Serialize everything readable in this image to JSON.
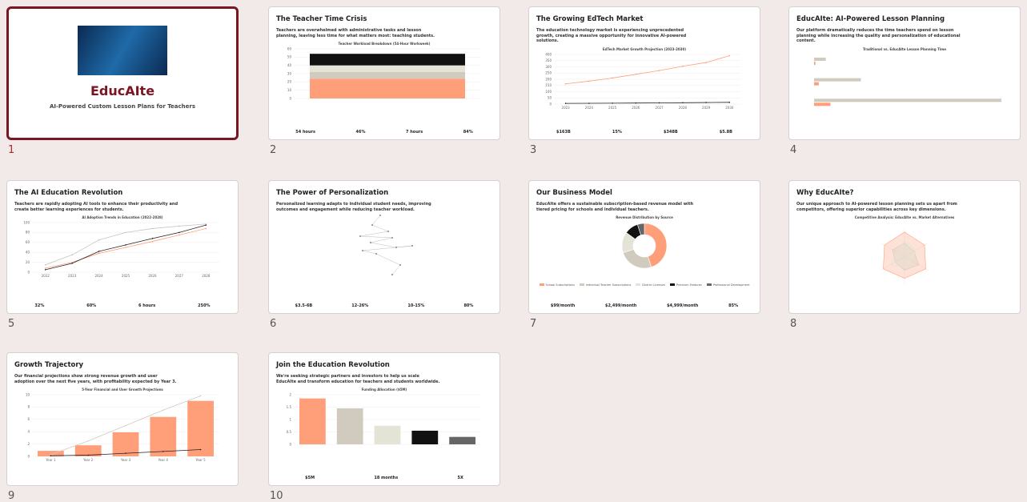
{
  "slides": [
    {
      "number": "1",
      "title": "EducAIte",
      "subtitle": "AI-Powered Custom Lesson Plans for Teachers"
    },
    {
      "number": "2",
      "title": "The Teacher Time Crisis",
      "subtitle": "Teachers are overwhelmed with administrative tasks and lesson planning, leaving less time for what matters most: teaching students.",
      "chart_title": "Teacher Workload Breakdown (54-Hour Workweek)",
      "chart": {
        "type": "stacked",
        "values": [
          24,
          8,
          8,
          14
        ],
        "colors": [
          "#ff9f7a",
          "#d1cabe",
          "#e4e4d6",
          "#111111"
        ],
        "ylim": [
          0,
          60
        ],
        "yticks": [
          0,
          10,
          20,
          30,
          40,
          50,
          60
        ]
      },
      "stats": [
        "54 hours",
        "46%",
        "7 hours",
        "84%"
      ]
    },
    {
      "number": "3",
      "title": "The Growing EdTech Market",
      "subtitle": "The education technology market is experiencing unprecedented growth, creating a massive opportunity for innovative AI-powered solutions.",
      "chart_title": "EdTech Market Growth Projection (2023-2030)",
      "chart": {
        "type": "line",
        "categories": [
          "2023",
          "2024",
          "2025",
          "2026",
          "2027",
          "2028",
          "2029",
          "2030"
        ],
        "ylim": [
          0,
          400
        ],
        "yticks": [
          0,
          50,
          100,
          150,
          200,
          250,
          300,
          350,
          400
        ],
        "series": [
          {
            "color": "#ff9f7a",
            "values": [
              163,
              185,
              210,
              240,
              270,
              305,
              335,
              390
            ]
          },
          {
            "color": "#222222",
            "values": [
              5.8,
              6.5,
              7.5,
              8.6,
              9.8,
              11,
              12.5,
              14
            ]
          }
        ]
      },
      "stats": [
        "$163B",
        "15%",
        "$348B",
        "$5.8B"
      ]
    },
    {
      "number": "4",
      "title": "EducAIte: AI-Powered Lesson Planning",
      "subtitle": "Our platform dramatically reduces the time teachers spend on lesson planning while increasing the quality and personalization of educational content.",
      "chart_title": "Traditional vs. EducAIte Lesson Planning Time",
      "chart": {
        "type": "hbar",
        "ylim": [
          0,
          40
        ],
        "series": [
          {
            "color": "#d1cabe",
            "values": [
              2.5,
              10,
              40
            ]
          },
          {
            "color": "#ff9f7a",
            "values": [
              0.3,
              1,
              3.5
            ]
          }
        ]
      }
    },
    {
      "number": "5",
      "title": "The AI Education Revolution",
      "subtitle": "Teachers are rapidly adopting AI tools to enhance their productivity and create better learning experiences for students.",
      "chart_title": "AI Adoption Trends in Education (2022-2028)",
      "chart": {
        "type": "line",
        "categories": [
          "2022",
          "2023",
          "2024",
          "2025",
          "2026",
          "2027",
          "2028"
        ],
        "ylim": [
          0,
          100
        ],
        "yticks": [
          0,
          20,
          40,
          60,
          80,
          100
        ],
        "series": [
          {
            "color": "#ff9f7a",
            "values": [
              8,
              20,
              38,
              50,
              62,
              75,
              88
            ]
          },
          {
            "color": "#c8c2b8",
            "values": [
              15,
              35,
              65,
              80,
              88,
              93,
              97
            ]
          },
          {
            "color": "#222222",
            "values": [
              5,
              18,
              42,
              55,
              68,
              80,
              95
            ]
          }
        ]
      },
      "stats": [
        "32%",
        "60%",
        "6 hours",
        "250%"
      ]
    },
    {
      "number": "6",
      "title": "The Power of Personalization",
      "subtitle": "Personalized learning adapts to individual student needs, improving outcomes and engagement while reducing teacher workload.",
      "stats": [
        "$3.5-6B",
        "12-26%",
        "10-15%",
        "80%"
      ]
    },
    {
      "number": "7",
      "title": "Our Business Model",
      "subtitle": "EducAIte offers a sustainable subscription-based revenue model with tiered pricing for schools and individual teachers.",
      "chart_title": "Revenue Distribution by Source",
      "chart": {
        "type": "donut",
        "names": [
          "School Subscriptions",
          "Individual Teacher Subscriptions",
          "District Licenses",
          "Premium Features",
          "Professional Development"
        ],
        "values": [
          45,
          25,
          15,
          10,
          5
        ],
        "colors": [
          "#ff9f7a",
          "#d1cabe",
          "#e4e4d6",
          "#111111",
          "#666666"
        ]
      },
      "stats": [
        "$99/month",
        "$2,499/month",
        "$4,999/month",
        "85%"
      ]
    },
    {
      "number": "8",
      "title": "Why EducAIte?",
      "subtitle": "Our unique approach to AI-powered lesson planning sets us apart from competitors, offering superior capabilities across key dimensions.",
      "chart_title": "Competitive Analysis: EducAIte vs. Market Alternatives",
      "chart": {
        "type": "radar",
        "ylim": [
          0,
          10
        ],
        "series": [
          {
            "color": "#ff9f7a",
            "values": [
              9,
              8.5,
              9,
              8,
              9,
              8.5
            ]
          },
          {
            "color": "#d1cabe",
            "values": [
              5,
              4,
              6,
              5,
              4,
              5
            ]
          },
          {
            "color": "#e4e4d6",
            "values": [
              6,
              5,
              3,
              4,
              6,
              3
            ]
          }
        ]
      }
    },
    {
      "number": "9",
      "title": "Growth Trajectory",
      "subtitle": "Our financial projections show strong revenue growth and user adoption over the next five years, with profitability expected by Year 3.",
      "chart_title": "5-Year Financial and User Growth Projections",
      "chart": {
        "type": "bar",
        "categories": [
          "Year 1",
          "Year 2",
          "Year 3",
          "Year 4",
          "Year 5"
        ],
        "ylim": [
          0,
          10
        ],
        "yticks": [
          0,
          2,
          4,
          6,
          8,
          10
        ],
        "values": [
          0.9,
          1.8,
          3.9,
          6.4,
          9
        ],
        "colors": [
          "#ff9f7a"
        ],
        "series": [
          {
            "color": "#d1cabe",
            "values": [
              0.3,
              2.5,
              5,
              7.5,
              9.8
            ]
          },
          {
            "color": "#222222",
            "values": [
              0.1,
              0.2,
              0.5,
              0.8,
              1.1
            ]
          }
        ]
      }
    },
    {
      "number": "10",
      "title": "Join the Education Revolution",
      "subtitle": "We're seeking strategic partners and investors to help us scale EducAIte and transform education for teachers and students worldwide.",
      "chart_title": "Funding Allocation ($5M)",
      "chart": {
        "type": "bar",
        "ylim": [
          0,
          2
        ],
        "yticks": [
          0,
          0.5,
          1,
          1.5,
          2
        ],
        "values": [
          1.85,
          1.45,
          0.75,
          0.55,
          0.3
        ],
        "colors": [
          "#ff9f7a",
          "#d1cabe",
          "#e4e4d6",
          "#111111",
          "#666666"
        ]
      },
      "stats": [
        "$5M",
        "18 months",
        "5X"
      ]
    }
  ]
}
